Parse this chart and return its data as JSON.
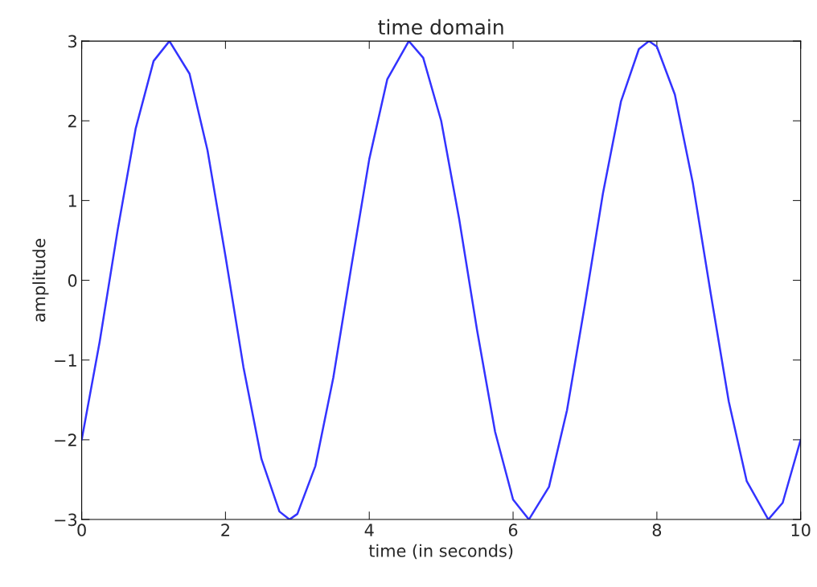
{
  "chart_data": {
    "type": "line",
    "title": "time domain",
    "xlabel": "time (in seconds)",
    "ylabel": "amplitude",
    "xlim": [
      0,
      10
    ],
    "ylim": [
      -3,
      3
    ],
    "xticks": [
      0,
      2,
      4,
      6,
      8,
      10
    ],
    "yticks": [
      -3,
      -2,
      -1,
      0,
      1,
      2,
      3
    ],
    "grid": false,
    "legend": false,
    "marker": "none",
    "line_style": "solid",
    "series": [
      {
        "color": "#3333ff",
        "x": [
          0,
          0.25,
          0.5,
          0.75,
          1.0,
          1.22,
          1.5,
          1.75,
          2.0,
          2.25,
          2.5,
          2.75,
          2.89,
          3.0,
          3.25,
          3.5,
          3.75,
          4.0,
          4.25,
          4.55,
          4.75,
          5.0,
          5.25,
          5.5,
          5.75,
          6.0,
          6.22,
          6.5,
          6.75,
          7.0,
          7.25,
          7.5,
          7.75,
          7.89,
          8.0,
          8.25,
          8.5,
          8.75,
          9.0,
          9.25,
          9.55,
          9.75,
          10.0
        ],
        "values": [
          -2.0,
          -0.77,
          0.63,
          1.9,
          2.75,
          3.0,
          2.59,
          1.63,
          0.3,
          -1.09,
          -2.24,
          -2.9,
          -3.0,
          -2.93,
          -2.33,
          -1.22,
          0.17,
          1.52,
          2.52,
          3.0,
          2.79,
          2.0,
          0.77,
          -0.63,
          -1.9,
          -2.75,
          -3.0,
          -2.59,
          -1.63,
          -0.3,
          1.09,
          2.24,
          2.9,
          3.0,
          2.93,
          2.33,
          1.22,
          -0.17,
          -1.52,
          -2.52,
          -3.0,
          -2.79,
          -2.0
        ]
      }
    ]
  }
}
